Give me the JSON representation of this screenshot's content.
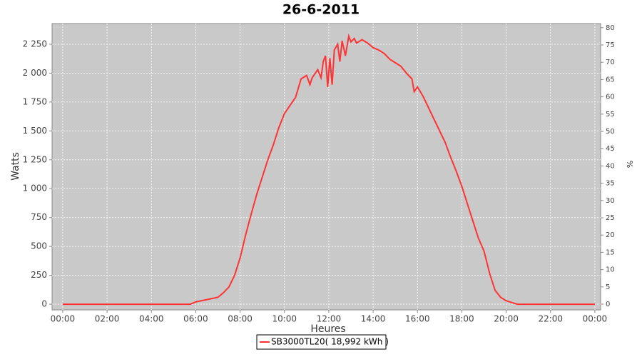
{
  "chart_data": {
    "type": "line",
    "title": "26-6-2011",
    "x_label": "Heures",
    "y_label": "Watts",
    "y2_label": "%",
    "x": [
      0,
      5.5,
      5.75,
      6,
      6.25,
      6.5,
      6.75,
      7,
      7.25,
      7.5,
      7.75,
      8,
      8.25,
      8.5,
      8.75,
      9,
      9.25,
      9.5,
      9.75,
      10,
      10.25,
      10.5,
      10.75,
      11,
      11.15,
      11.25,
      11.5,
      11.65,
      11.75,
      11.85,
      11.95,
      12.05,
      12.15,
      12.25,
      12.4,
      12.5,
      12.6,
      12.75,
      12.9,
      13,
      13.15,
      13.25,
      13.5,
      13.75,
      14,
      14.25,
      14.5,
      14.75,
      15,
      15.25,
      15.5,
      15.75,
      15.85,
      16,
      16.25,
      16.5,
      16.75,
      17,
      17.25,
      17.5,
      17.75,
      18,
      18.25,
      18.5,
      18.75,
      19,
      19.25,
      19.5,
      19.75,
      20,
      20.25,
      20.5,
      24
    ],
    "series": [
      {
        "name": "SB3000TL20( 18,992 kWh )",
        "color": "#ff3333",
        "values": [
          0,
          0,
          0,
          20,
          30,
          40,
          50,
          60,
          100,
          150,
          250,
          400,
          600,
          780,
          950,
          1100,
          1250,
          1380,
          1530,
          1650,
          1720,
          1790,
          1950,
          1980,
          1900,
          1960,
          2030,
          1960,
          2100,
          2150,
          1880,
          2130,
          1900,
          2200,
          2250,
          2100,
          2280,
          2150,
          2320,
          2270,
          2300,
          2260,
          2290,
          2260,
          2220,
          2200,
          2170,
          2120,
          2090,
          2060,
          2000,
          1950,
          1840,
          1880,
          1800,
          1700,
          1600,
          1500,
          1400,
          1270,
          1150,
          1020,
          870,
          720,
          570,
          460,
          270,
          120,
          60,
          30,
          15,
          0,
          0
        ]
      }
    ],
    "xlim": [
      -0.48,
      24.26
    ],
    "xticks": [
      {
        "value": 0,
        "label": "00:00"
      },
      {
        "value": 2,
        "label": "02:00"
      },
      {
        "value": 4,
        "label": "04:00"
      },
      {
        "value": 6,
        "label": "06:00"
      },
      {
        "value": 8,
        "label": "08:00"
      },
      {
        "value": 10,
        "label": "10:00"
      },
      {
        "value": 12,
        "label": "12:00"
      },
      {
        "value": 14,
        "label": "14:00"
      },
      {
        "value": 16,
        "label": "16:00"
      },
      {
        "value": 18,
        "label": "18:00"
      },
      {
        "value": 20,
        "label": "20:00"
      },
      {
        "value": 22,
        "label": "22:00"
      },
      {
        "value": 24,
        "label": "00:00"
      }
    ],
    "ylim": [
      -49,
      2429
    ],
    "yticks": [
      0,
      250,
      500,
      750,
      {
        "value": 1000,
        "label": "1 000"
      },
      {
        "value": 1250,
        "label": "1 250"
      },
      {
        "value": 1500,
        "label": "1 500"
      },
      {
        "value": 1750,
        "label": "1 750"
      },
      {
        "value": 2000,
        "label": "2 000"
      },
      {
        "value": 2250,
        "label": "2 250"
      }
    ],
    "y2lim": [
      -1.65,
      81.2
    ],
    "y2ticks": [
      0,
      5,
      10,
      15,
      20,
      25,
      30,
      35,
      40,
      45,
      50,
      55,
      60,
      65,
      70,
      75,
      80
    ],
    "grid": true,
    "legend": "bottom"
  }
}
